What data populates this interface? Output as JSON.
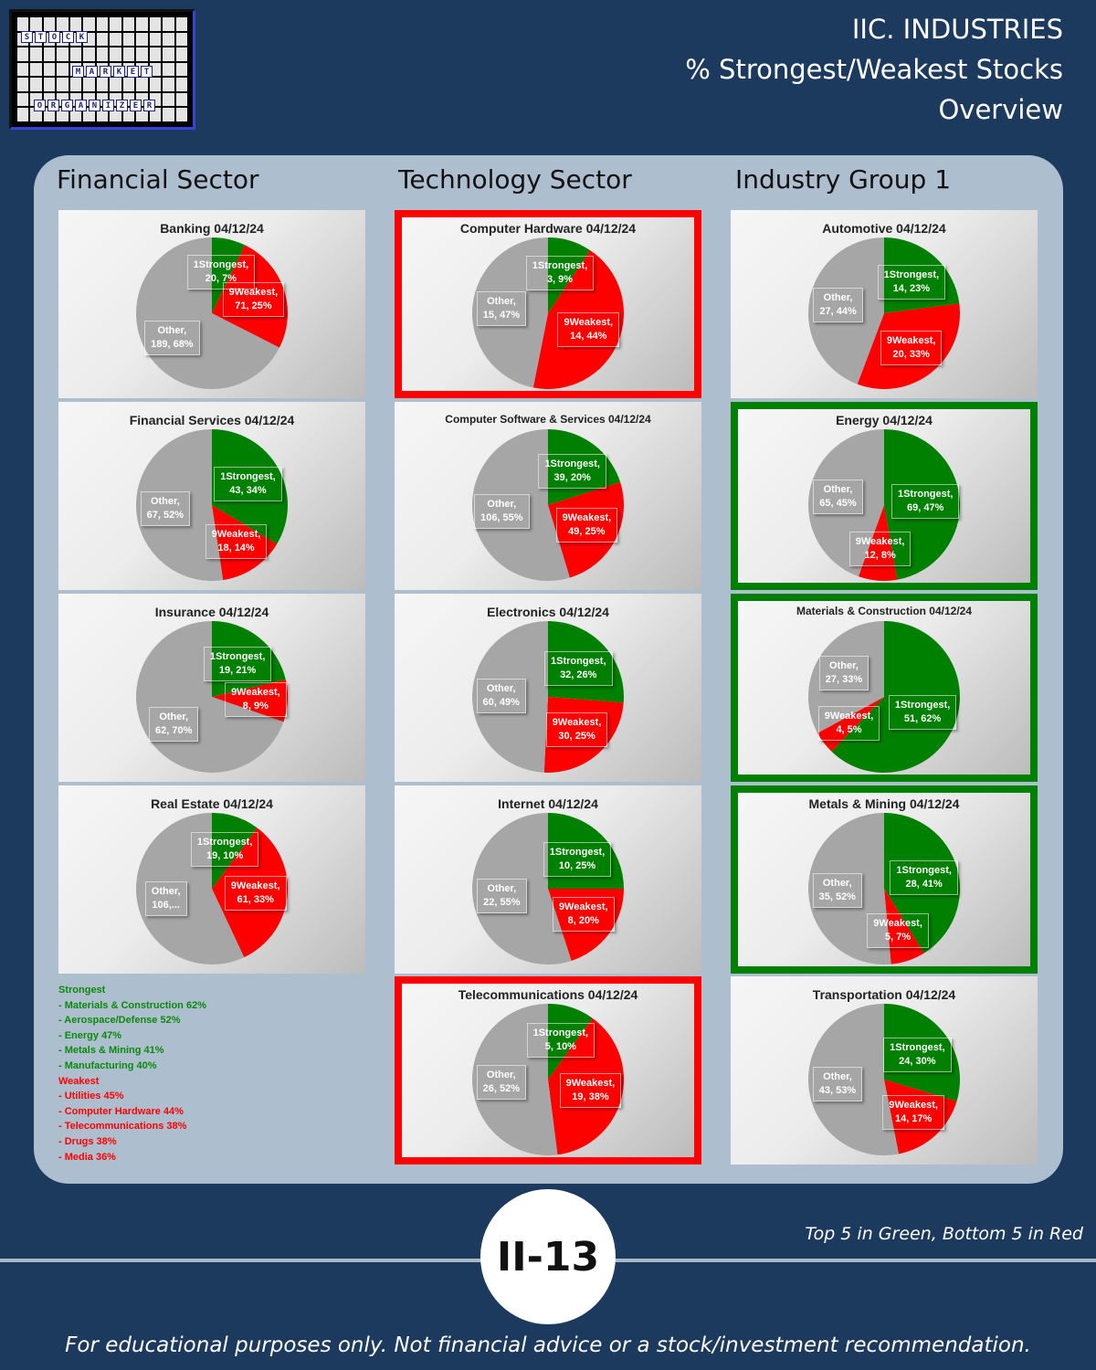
{
  "logo": {
    "rows": [
      "STOCK",
      "MARKET",
      "ORGANIZER"
    ]
  },
  "header": {
    "line1": "IIC. INDUSTRIES",
    "line2": "% Strongest/Weakest Stocks",
    "line3": "Overview"
  },
  "columns": [
    "Financial Sector",
    "Technology Sector",
    "Industry Group 1"
  ],
  "colors": {
    "strongest": "#008000",
    "weakest": "#ff0000",
    "other": "#a6a6a6",
    "background": "#1c3a5e",
    "panel": "#adbfcf"
  },
  "chart_data": [
    {
      "type": "pie",
      "title": "Banking 04/12/24",
      "highlight": "none",
      "labels": [
        "1Strongest, 20, 7%",
        "9Weakest, 71, 25%",
        "Other, 189, 68%"
      ],
      "slices": [
        {
          "name": "1Strongest",
          "value": 20,
          "pct": 7
        },
        {
          "name": "9Weakest",
          "value": 71,
          "pct": 25
        },
        {
          "name": "Other",
          "value": 189,
          "pct": 68
        }
      ]
    },
    {
      "type": "pie",
      "title": "Financial Services 04/12/24",
      "highlight": "none",
      "labels": [
        "1Strongest, 43, 34%",
        "9Weakest, 18, 14%",
        "Other, 67, 52%"
      ],
      "slices": [
        {
          "name": "1Strongest",
          "value": 43,
          "pct": 34
        },
        {
          "name": "9Weakest",
          "value": 18,
          "pct": 14
        },
        {
          "name": "Other",
          "value": 67,
          "pct": 52
        }
      ]
    },
    {
      "type": "pie",
      "title": "Insurance 04/12/24",
      "highlight": "none",
      "labels": [
        "1Strongest, 19, 21%",
        "9Weakest, 8, 9%",
        "Other, 62, 70%"
      ],
      "slices": [
        {
          "name": "1Strongest",
          "value": 19,
          "pct": 21
        },
        {
          "name": "9Weakest",
          "value": 8,
          "pct": 9
        },
        {
          "name": "Other",
          "value": 62,
          "pct": 70
        }
      ]
    },
    {
      "type": "pie",
      "title": "Real Estate 04/12/24",
      "highlight": "none",
      "labels": [
        "1Strongest, 19, 10%",
        "9Weakest, 61, 33%",
        "Other, 106,..."
      ],
      "slices": [
        {
          "name": "1Strongest",
          "value": 19,
          "pct": 10
        },
        {
          "name": "9Weakest",
          "value": 61,
          "pct": 33
        },
        {
          "name": "Other",
          "value": 106,
          "pct": 57
        }
      ]
    },
    {
      "type": "pie",
      "title": "Computer Hardware 04/12/24",
      "highlight": "red",
      "labels": [
        "1Strongest, 3, 9%",
        "9Weakest, 14, 44%",
        "Other, 15, 47%"
      ],
      "slices": [
        {
          "name": "1Strongest",
          "value": 3,
          "pct": 9
        },
        {
          "name": "9Weakest",
          "value": 14,
          "pct": 44
        },
        {
          "name": "Other",
          "value": 15,
          "pct": 47
        }
      ]
    },
    {
      "type": "pie",
      "title": "Computer Software & Services 04/12/24",
      "highlight": "none",
      "labels": [
        "1Strongest, 39, 20%",
        "9Weakest, 49, 25%",
        "Other, 106, 55%"
      ],
      "slices": [
        {
          "name": "1Strongest",
          "value": 39,
          "pct": 20
        },
        {
          "name": "9Weakest",
          "value": 49,
          "pct": 25
        },
        {
          "name": "Other",
          "value": 106,
          "pct": 55
        }
      ]
    },
    {
      "type": "pie",
      "title": "Electronics 04/12/24",
      "highlight": "none",
      "labels": [
        "1Strongest, 32, 26%",
        "9Weakest, 30, 25%",
        "Other, 60, 49%"
      ],
      "slices": [
        {
          "name": "1Strongest",
          "value": 32,
          "pct": 26
        },
        {
          "name": "9Weakest",
          "value": 30,
          "pct": 25
        },
        {
          "name": "Other",
          "value": 60,
          "pct": 49
        }
      ]
    },
    {
      "type": "pie",
      "title": "Internet 04/12/24",
      "highlight": "none",
      "labels": [
        "1Strongest, 10, 25%",
        "9Weakest, 8, 20%",
        "Other, 22, 55%"
      ],
      "slices": [
        {
          "name": "1Strongest",
          "value": 10,
          "pct": 25
        },
        {
          "name": "9Weakest",
          "value": 8,
          "pct": 20
        },
        {
          "name": "Other",
          "value": 22,
          "pct": 55
        }
      ]
    },
    {
      "type": "pie",
      "title": "Telecommunications 04/12/24",
      "highlight": "red",
      "labels": [
        "1Strongest, 5, 10%",
        "9Weakest, 19, 38%",
        "Other, 26, 52%"
      ],
      "slices": [
        {
          "name": "1Strongest",
          "value": 5,
          "pct": 10
        },
        {
          "name": "9Weakest",
          "value": 19,
          "pct": 38
        },
        {
          "name": "Other",
          "value": 26,
          "pct": 52
        }
      ]
    },
    {
      "type": "pie",
      "title": "Automotive 04/12/24",
      "highlight": "none",
      "labels": [
        "1Strongest, 14, 23%",
        "9Weakest, 20, 33%",
        "Other, 27, 44%"
      ],
      "slices": [
        {
          "name": "1Strongest",
          "value": 14,
          "pct": 23
        },
        {
          "name": "9Weakest",
          "value": 20,
          "pct": 33
        },
        {
          "name": "Other",
          "value": 27,
          "pct": 44
        }
      ]
    },
    {
      "type": "pie",
      "title": "Energy 04/12/24",
      "highlight": "green",
      "labels": [
        "1Strongest, 69, 47%",
        "9Weakest, 12, 8%",
        "Other, 65, 45%"
      ],
      "slices": [
        {
          "name": "1Strongest",
          "value": 69,
          "pct": 47
        },
        {
          "name": "9Weakest",
          "value": 12,
          "pct": 8
        },
        {
          "name": "Other",
          "value": 65,
          "pct": 45
        }
      ]
    },
    {
      "type": "pie",
      "title": "Materials & Construction 04/12/24",
      "highlight": "green",
      "labels": [
        "1Strongest, 51, 62%",
        "9Weakest, 4, 5%",
        "Other, 27, 33%"
      ],
      "slices": [
        {
          "name": "1Strongest",
          "value": 51,
          "pct": 62
        },
        {
          "name": "9Weakest",
          "value": 4,
          "pct": 5
        },
        {
          "name": "Other",
          "value": 27,
          "pct": 33
        }
      ]
    },
    {
      "type": "pie",
      "title": "Metals & Mining 04/12/24",
      "highlight": "green",
      "labels": [
        "1Strongest, 28, 41%",
        "9Weakest, 5, 7%",
        "Other, 35, 52%"
      ],
      "slices": [
        {
          "name": "1Strongest",
          "value": 28,
          "pct": 41
        },
        {
          "name": "9Weakest",
          "value": 5,
          "pct": 7
        },
        {
          "name": "Other",
          "value": 35,
          "pct": 52
        }
      ]
    },
    {
      "type": "pie",
      "title": "Transportation 04/12/24",
      "highlight": "none",
      "labels": [
        "1Strongest, 24, 30%",
        "9Weakest, 14, 17%",
        "Other, 43, 53%"
      ],
      "slices": [
        {
          "name": "1Strongest",
          "value": 24,
          "pct": 30
        },
        {
          "name": "9Weakest",
          "value": 14,
          "pct": 17
        },
        {
          "name": "Other",
          "value": 43,
          "pct": 53
        }
      ]
    }
  ],
  "rankings": {
    "strongest_title": "Strongest",
    "strongest": [
      " - Materials & Construction 62%",
      " - Aerospace/Defense 52%",
      " - Energy 47%",
      " - Metals & Mining 41%",
      " - Manufacturing 40%"
    ],
    "weakest_title": "Weakest",
    "weakest": [
      " - Utilities 45%",
      " - Computer Hardware 44%",
      " - Telecommunications 38%",
      " - Drugs 38%",
      " - Media 36%"
    ]
  },
  "footer": {
    "legend_note": "Top 5 in Green, Bottom 5 in Red",
    "page_number": "II-13",
    "disclaimer": "For educational purposes only. Not financial advice or a stock/investment recommendation."
  }
}
